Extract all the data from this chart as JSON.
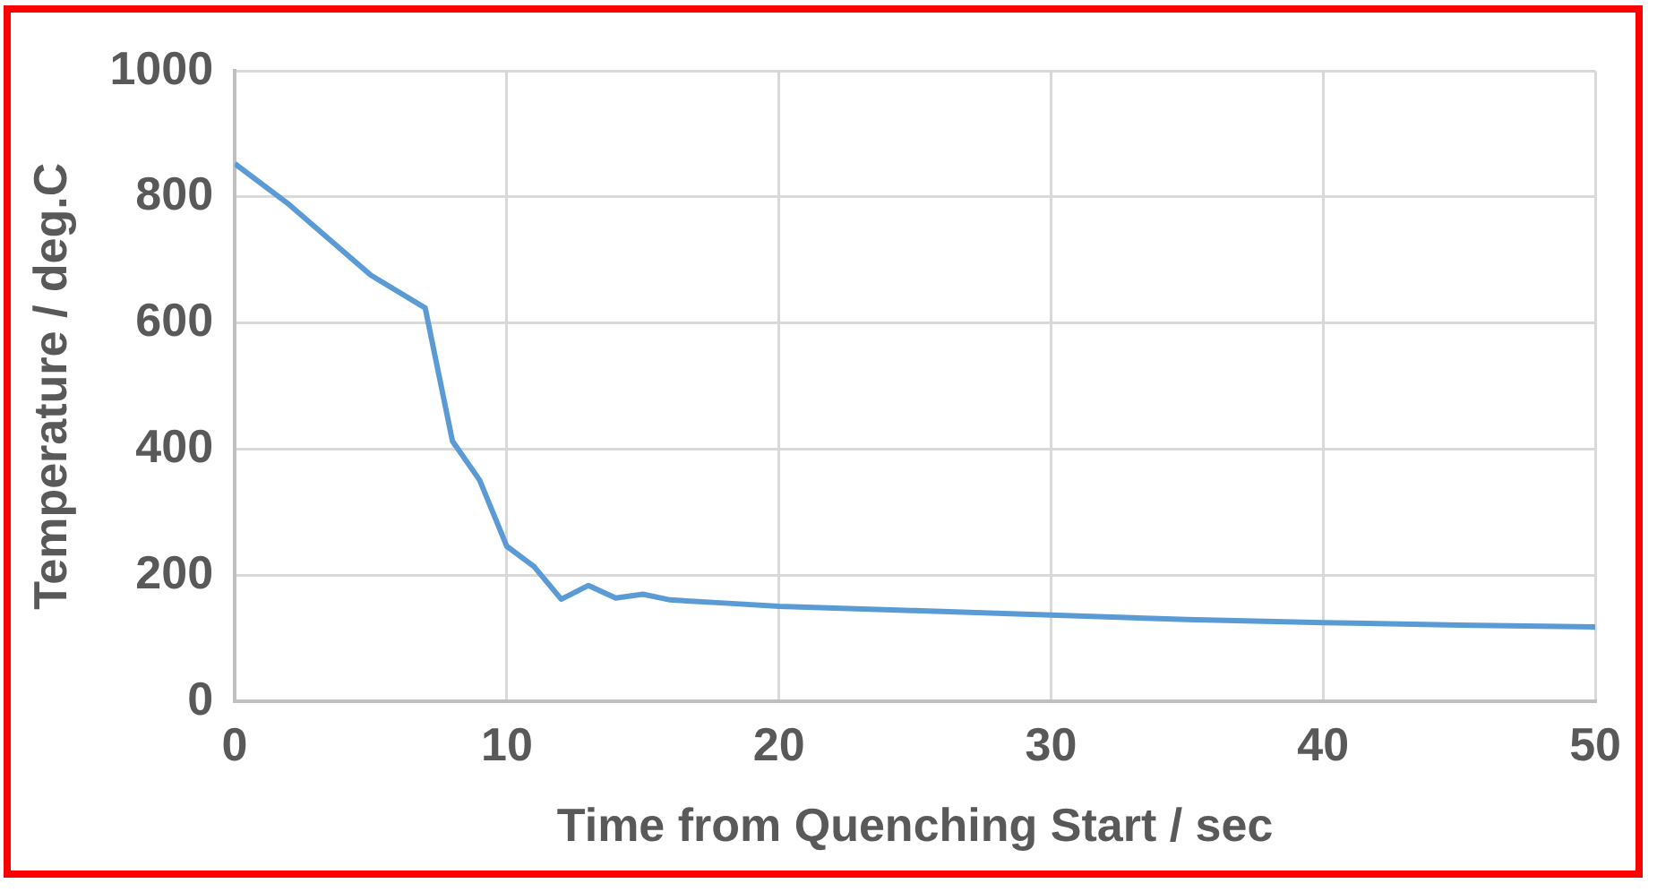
{
  "chart_data": {
    "type": "line",
    "xlabel": "Time from Quenching Start / sec",
    "ylabel": "Temperature / deg.C",
    "x": [
      0,
      2,
      5,
      7,
      8,
      9,
      10,
      11,
      12,
      13,
      14,
      15,
      16,
      18,
      20,
      25,
      30,
      35,
      40,
      45,
      50
    ],
    "series": [
      {
        "color": "#5b9bd5",
        "values": [
          853,
          788,
          676,
          624,
          413,
          351,
          246,
          214,
          162,
          184,
          164,
          170,
          161,
          156,
          151,
          144,
          137,
          130,
          125,
          121,
          118
        ]
      }
    ],
    "xlim": [
      0,
      50
    ],
    "xticks": [
      0,
      10,
      20,
      30,
      40,
      50
    ],
    "ylim": [
      0,
      1000
    ],
    "yticks": [
      0,
      200,
      400,
      600,
      800,
      1000
    ],
    "grid": true,
    "legend": false,
    "marker": "none",
    "line_style": "solid"
  }
}
